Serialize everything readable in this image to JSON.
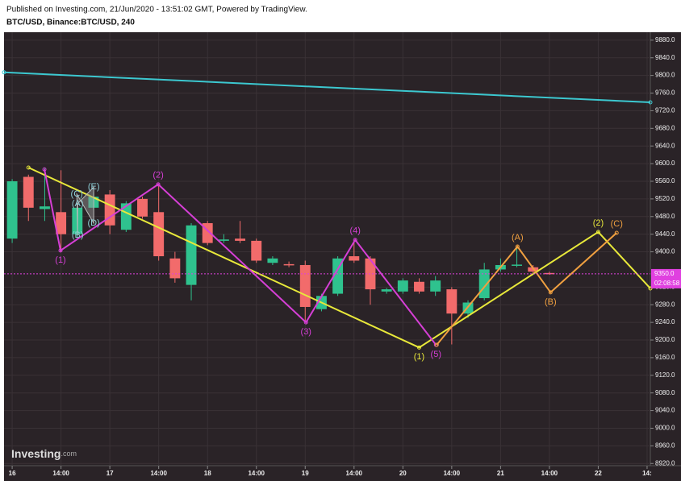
{
  "header": {
    "published": "Published on Investing.com, 21/Jun/2020 - 13:51:02 GMT, Powered by TradingView.",
    "symbol": "BTC/USD, Binance:BTC/USD, 240"
  },
  "chart_data": {
    "type": "candlestick",
    "open": [
      9430,
      9570,
      9497,
      9490,
      9440,
      9500,
      9530,
      9450,
      9520,
      9490,
      9385,
      9325,
      9465,
      9425,
      9430,
      9425,
      9375,
      9372,
      9370,
      9270,
      9305,
      9390,
      9385,
      9310,
      9310,
      9332,
      9310,
      9315,
      9260,
      9295,
      9360,
      9370,
      9365,
      9352
    ],
    "high": [
      9565,
      9575,
      9590,
      9585,
      9510,
      9535,
      9540,
      9515,
      9525,
      9550,
      9400,
      9465,
      9470,
      9440,
      9470,
      9430,
      9390,
      9378,
      9380,
      9305,
      9390,
      9425,
      9390,
      9318,
      9340,
      9340,
      9345,
      9320,
      9290,
      9375,
      9385,
      9410,
      9370,
      9355
    ],
    "low": [
      9420,
      9470,
      9470,
      9400,
      9430,
      9495,
      9440,
      9445,
      9475,
      9380,
      9330,
      9290,
      9415,
      9420,
      9420,
      9375,
      9370,
      9365,
      9240,
      9265,
      9300,
      9375,
      9280,
      9305,
      9305,
      9305,
      9300,
      9190,
      9250,
      9290,
      9355,
      9365,
      9350,
      9348
    ],
    "close": [
      9560,
      9500,
      9503,
      9440,
      9500,
      9525,
      9460,
      9510,
      9480,
      9390,
      9340,
      9460,
      9420,
      9428,
      9425,
      9380,
      9385,
      9370,
      9275,
      9300,
      9385,
      9380,
      9315,
      9315,
      9335,
      9310,
      9335,
      9260,
      9285,
      9360,
      9370,
      9371,
      9355,
      9350
    ],
    "up_color": "#2fc28e",
    "down_color": "#f26b6b",
    "xlim": [
      -0.5,
      39.2
    ],
    "ylim": [
      8915,
      9898
    ],
    "grid": true,
    "xticks": [
      {
        "value": 0,
        "label": "16"
      },
      {
        "value": 3,
        "label": "14:00"
      },
      {
        "value": 6,
        "label": "17"
      },
      {
        "value": 9,
        "label": "14:00"
      },
      {
        "value": 12,
        "label": "18"
      },
      {
        "value": 15,
        "label": "14:00"
      },
      {
        "value": 18,
        "label": "19"
      },
      {
        "value": 21,
        "label": "14:00"
      },
      {
        "value": 24,
        "label": "20"
      },
      {
        "value": 27,
        "label": "14:00"
      },
      {
        "value": 30,
        "label": "21"
      },
      {
        "value": 33,
        "label": "14:00"
      },
      {
        "value": 36,
        "label": "22"
      },
      {
        "value": 39,
        "label": "14:"
      }
    ],
    "yticks": [
      {
        "value": 9880,
        "label": "9880.0"
      },
      {
        "value": 9840,
        "label": "9840.0"
      },
      {
        "value": 9800,
        "label": "9800.0"
      },
      {
        "value": 9760,
        "label": "9760.0"
      },
      {
        "value": 9720,
        "label": "9720.0"
      },
      {
        "value": 9680,
        "label": "9680.0"
      },
      {
        "value": 9640,
        "label": "9640.0"
      },
      {
        "value": 9600,
        "label": "9600.0"
      },
      {
        "value": 9560,
        "label": "9560.0"
      },
      {
        "value": 9520,
        "label": "9520.0"
      },
      {
        "value": 9480,
        "label": "9480.0"
      },
      {
        "value": 9440,
        "label": "9440.0"
      },
      {
        "value": 9400,
        "label": "9400.0"
      },
      {
        "value": 9320,
        "label": "9320.0"
      },
      {
        "value": 9280,
        "label": "9280.0"
      },
      {
        "value": 9240,
        "label": "9240.0"
      },
      {
        "value": 9200,
        "label": "9200.0"
      },
      {
        "value": 9160,
        "label": "9160.0"
      },
      {
        "value": 9120,
        "label": "9120.0"
      },
      {
        "value": 9080,
        "label": "9080.0"
      },
      {
        "value": 9040,
        "label": "9040.0"
      },
      {
        "value": 9000,
        "label": "9000.0"
      },
      {
        "value": 8960,
        "label": "8960.0"
      },
      {
        "value": 8920,
        "label": "8920.0"
      }
    ],
    "last_price": {
      "value": 9350,
      "label": "9350.0"
    },
    "countdown": "02:08:58",
    "last_price_color": "#e040e0",
    "waves": [
      {
        "color": "#3cc8d0",
        "style": "line",
        "x": [
          -0.5,
          39.2
        ],
        "y": [
          9807,
          9739
        ],
        "labels": [
          null,
          null
        ]
      },
      {
        "color": "#e8e83a",
        "style": "line",
        "x": [
          1,
          25,
          36,
          39.2
        ],
        "y": [
          9591,
          9183,
          9445,
          9317
        ],
        "labels": [
          null,
          "(1)",
          "(2)",
          null
        ]
      },
      {
        "color": "#d63fd6",
        "style": "line",
        "x": [
          1.98,
          2.97,
          8.97,
          18.05,
          21.07,
          26.03
        ],
        "y": [
          9587,
          9403,
          9553,
          9240,
          9427,
          9189
        ],
        "labels": [
          null,
          "(1)",
          "(2)",
          "(3)",
          "(4)",
          "(5)"
        ]
      },
      {
        "color": "#f0a040",
        "style": "line",
        "x": [
          26.08,
          31.04,
          33.07,
          37.13
        ],
        "y": [
          9189,
          9412,
          9308,
          9443
        ],
        "labels": [
          null,
          "(A)",
          "(B)",
          "(C)"
        ]
      },
      {
        "color": "#8fd0d8",
        "style": "zone",
        "x": [
          4.02,
          4.02,
          3.97,
          5.01,
          5.01
        ],
        "y": [
          9509,
          9437,
          9531,
          9465,
          9547
        ],
        "labels": [
          "(A)",
          "(B)",
          "(C)",
          "(D)",
          "(E)"
        ]
      }
    ],
    "logo": "Investing",
    "logo_suffix": ".com"
  }
}
